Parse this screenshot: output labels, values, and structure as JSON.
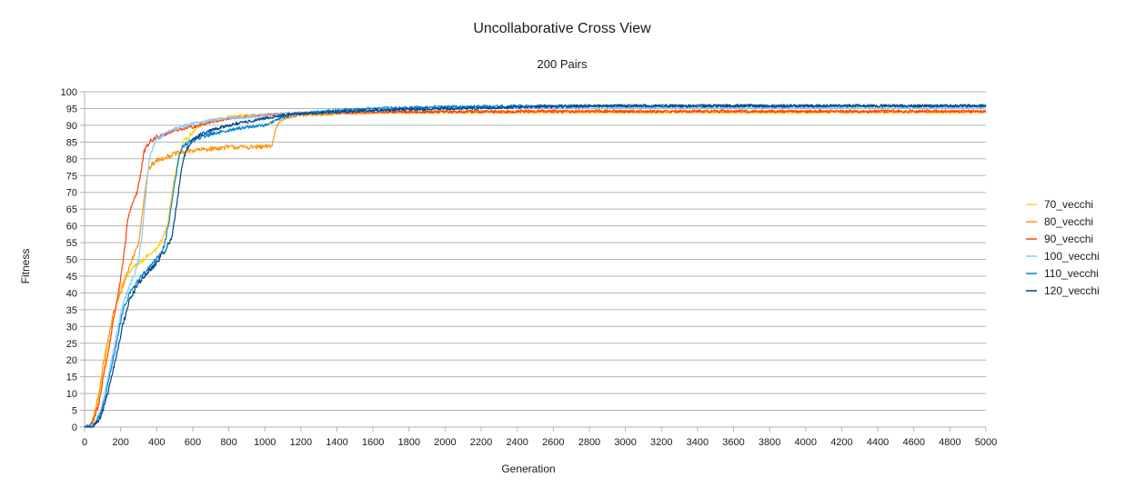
{
  "chart_data": {
    "type": "line",
    "title": "Uncollaborative Cross View",
    "subtitle": "200 Pairs",
    "xlabel": "Generation",
    "ylabel": "Fitness",
    "xlim": [
      0,
      5000
    ],
    "ylim": [
      0,
      100
    ],
    "xticks": [
      0,
      200,
      400,
      600,
      800,
      1000,
      1200,
      1400,
      1600,
      1800,
      2000,
      2200,
      2400,
      2600,
      2800,
      3000,
      3200,
      3400,
      3600,
      3800,
      4000,
      4200,
      4400,
      4600,
      4800,
      5000
    ],
    "yticks": [
      0,
      5,
      10,
      15,
      20,
      25,
      30,
      35,
      40,
      45,
      50,
      55,
      60,
      65,
      70,
      75,
      80,
      85,
      90,
      95,
      100
    ],
    "grid": "horizontal",
    "legend_position": "right",
    "series": [
      {
        "name": "70_vecchi",
        "color": "#ffd320",
        "x": [
          0,
          30,
          50,
          80,
          100,
          120,
          150,
          170,
          200,
          230,
          260,
          300,
          350,
          400,
          430,
          460,
          490,
          520,
          550,
          600,
          650,
          700,
          800,
          900,
          1000,
          1100,
          1200,
          1400,
          1600,
          2000,
          2500,
          3000,
          3500,
          4000,
          4500,
          5000
        ],
        "y": [
          0,
          0,
          2,
          8,
          15,
          22,
          28,
          35,
          42,
          45,
          47,
          49,
          51,
          53,
          56,
          60,
          72,
          80,
          85,
          88,
          90,
          91.5,
          92.5,
          93,
          93,
          93.2,
          93.5,
          93.8,
          94,
          94,
          94,
          94,
          94,
          94,
          94,
          94
        ]
      },
      {
        "name": "80_vecchi",
        "color": "#ff950e",
        "x": [
          0,
          30,
          50,
          80,
          100,
          130,
          160,
          200,
          250,
          300,
          330,
          350,
          370,
          400,
          450,
          500,
          550,
          600,
          700,
          800,
          900,
          1000,
          1040,
          1060,
          1080,
          1100,
          1200,
          1400,
          1600,
          2000,
          2500,
          3000,
          3500,
          4000,
          4500,
          5000
        ],
        "y": [
          0,
          0,
          3,
          10,
          18,
          26,
          34,
          40,
          48,
          55,
          68,
          76,
          78,
          79.5,
          80.5,
          81.5,
          82,
          82.5,
          83,
          83.5,
          83.5,
          83.5,
          84,
          89,
          91,
          92,
          93,
          93.5,
          93.8,
          94,
          94,
          94,
          94,
          94,
          94,
          94
        ]
      },
      {
        "name": "90_vecchi",
        "color": "#ff420e",
        "x": [
          0,
          30,
          50,
          80,
          100,
          130,
          160,
          200,
          220,
          240,
          260,
          290,
          310,
          330,
          360,
          400,
          450,
          500,
          600,
          700,
          800,
          900,
          1000,
          1100,
          1200,
          1400,
          1600,
          2000,
          2500,
          3000,
          3500,
          4000,
          4500,
          5000
        ],
        "y": [
          0,
          0,
          2,
          7,
          14,
          22,
          32,
          44,
          52,
          62,
          66,
          70,
          75,
          82,
          85,
          86.5,
          87.5,
          88.5,
          89.5,
          91,
          92,
          92.5,
          93,
          93.3,
          93.5,
          93.8,
          94,
          94,
          94.2,
          94.2,
          94.2,
          94.2,
          94.2,
          94.2
        ]
      },
      {
        "name": "100_vecchi",
        "color": "#83caff",
        "x": [
          0,
          40,
          60,
          90,
          120,
          150,
          180,
          210,
          250,
          280,
          300,
          320,
          340,
          360,
          380,
          400,
          450,
          500,
          600,
          700,
          800,
          900,
          1000,
          1100,
          1200,
          1400,
          1600,
          2000,
          2500,
          3000,
          3500,
          4000,
          4500,
          5000
        ],
        "y": [
          0,
          0,
          1,
          5,
          12,
          20,
          28,
          36,
          42,
          46,
          50,
          58,
          70,
          80,
          84,
          86,
          87.5,
          89,
          90.5,
          91.5,
          92,
          92.5,
          93,
          93.5,
          93.8,
          94,
          94.5,
          95,
          95.5,
          95.5,
          95.5,
          95.5,
          95.5,
          95.5
        ]
      },
      {
        "name": "110_vecchi",
        "color": "#0084d1",
        "x": [
          0,
          40,
          60,
          90,
          120,
          150,
          180,
          210,
          250,
          300,
          350,
          400,
          430,
          450,
          470,
          500,
          530,
          550,
          600,
          700,
          800,
          900,
          1000,
          1060,
          1100,
          1200,
          1400,
          1600,
          2000,
          2500,
          3000,
          3500,
          4000,
          4500,
          5000
        ],
        "y": [
          0,
          0,
          1,
          4,
          10,
          18,
          26,
          34,
          40,
          44,
          47,
          50,
          52,
          56,
          62,
          73,
          82,
          84,
          85.5,
          87.5,
          88.5,
          89.5,
          90,
          91.5,
          92.5,
          93.5,
          94.5,
          95,
          95.5,
          95.8,
          95.8,
          95.8,
          95.8,
          95.8,
          95.8
        ]
      },
      {
        "name": "120_vecchi",
        "color": "#004586",
        "x": [
          0,
          40,
          60,
          90,
          120,
          150,
          180,
          210,
          250,
          300,
          350,
          400,
          450,
          480,
          500,
          520,
          540,
          560,
          600,
          700,
          800,
          900,
          1000,
          1100,
          1200,
          1400,
          1600,
          2000,
          2500,
          3000,
          3500,
          4000,
          4500,
          5000
        ],
        "y": [
          0,
          0,
          1,
          3,
          8,
          15,
          22,
          30,
          38,
          43,
          46,
          49,
          53,
          56,
          62,
          70,
          78,
          82,
          86,
          88.5,
          90,
          91,
          92,
          93,
          93.5,
          94,
          94.5,
          95,
          95.5,
          95.8,
          95.8,
          95.8,
          95.8,
          95.8
        ]
      }
    ]
  }
}
